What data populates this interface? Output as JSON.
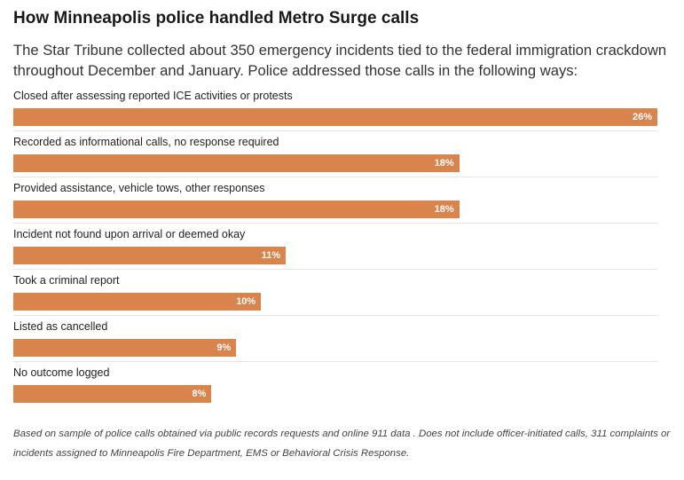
{
  "title": "How Minneapolis police handled Metro Surge calls",
  "subtitle": "The Star Tribune collected about 350 emergency incidents tied to the federal immigration crackdown throughout December and January. Police addressed those calls in the following ways:",
  "note": "Based on sample of police calls obtained via public records requests and online 911 data . Does not include officer-initiated calls, 311 complaints or incidents assigned to Minneapolis Fire Department, EMS or Behavioral Crisis Response.",
  "colors": {
    "bar": "#d9834d",
    "value_label": "#ffffff"
  },
  "chart_data": {
    "type": "bar",
    "orientation": "horizontal",
    "categories": [
      "Closed after assessing reported ICE activities or protests",
      "Recorded as informational calls, no response required",
      "Provided assistance, vehicle tows, other responses",
      "Incident not found upon arrival or deemed okay",
      "Took a criminal report",
      "Listed as cancelled",
      "No outcome logged"
    ],
    "values": [
      26,
      18,
      18,
      11,
      10,
      9,
      8
    ],
    "value_labels": [
      "26%",
      "18%",
      "18%",
      "11%",
      "10%",
      "9%",
      "8%"
    ],
    "xlim": [
      0,
      26
    ],
    "grid": false,
    "legend": "none"
  }
}
